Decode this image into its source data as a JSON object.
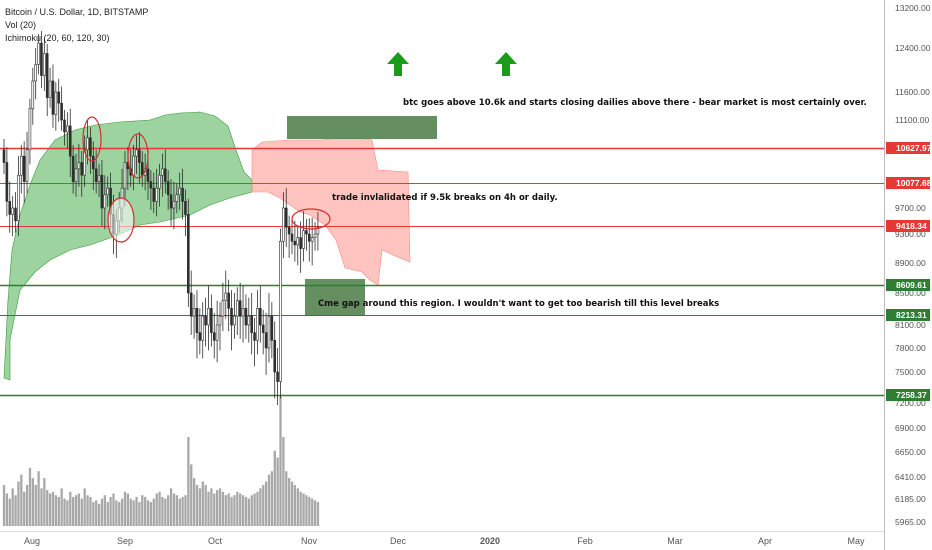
{
  "header": {
    "symbol": "Bitcoin / U.S. Dollar, 1D, BITSTAMP",
    "volume": "Vol (20)",
    "ichimoku": "Ichimoku (20, 60, 120, 30)"
  },
  "colors": {
    "up": "#2e2e2e",
    "down": "#2e2e2e",
    "volume": "#a8a8a8",
    "cloud_bull": "#4caf50",
    "cloud_bear": "#ff8a80",
    "red_line": "#e53935",
    "green_line": "#2e7d32",
    "arrow": "#1a9c1a",
    "box": "#4a7a45",
    "axis_text": "#555555"
  },
  "chart_data": {
    "type": "candlestick",
    "x_axis_labels": [
      "Aug",
      "Sep",
      "Oct",
      "Nov",
      "Dec",
      "2020",
      "Feb",
      "Mar",
      "Apr",
      "May"
    ],
    "y_axis_ticks": [
      13200,
      12400,
      11600,
      11100,
      9700,
      9300,
      8900,
      8500,
      8100,
      7800,
      7500,
      7200,
      6900,
      6650,
      6410,
      6185,
      5965
    ],
    "y_axis_tick_labels": [
      "13200.00",
      "12400.00",
      "11600.00",
      "11100.00",
      "9700.00",
      "9300.00",
      "8900.00",
      "8500.00",
      "8100.00",
      "7800.00",
      "7500.00",
      "7200.00",
      "6900.00",
      "6650.00",
      "6410.00",
      "6185.00",
      "5965.00"
    ],
    "price_range": [
      7150,
      13200
    ],
    "horizontal_levels": [
      {
        "price": 10627.97,
        "label": "10627.97",
        "color": "red"
      },
      {
        "price": 10077.68,
        "label": "10077.68",
        "color": "red"
      },
      {
        "price": 9418.34,
        "label": "9418.34",
        "color": "red"
      },
      {
        "price": 8609.61,
        "label": "8609.61",
        "color": "green"
      },
      {
        "price": 8213.31,
        "label": "8213.31",
        "color": "green"
      },
      {
        "price": 7258.37,
        "label": "7258.37",
        "color": "green"
      }
    ],
    "annotations": [
      "btc goes above 10.6k and starts closing dailies above there - bear market is most certainly over.",
      "trade invlalidated if 9.5k breaks on 4h or daily.",
      "Cme gap around this region. I wouldn't want to get too bearish till this level breaks"
    ],
    "closes": [
      10400,
      9800,
      9600,
      9700,
      9500,
      10200,
      10500,
      10100,
      10600,
      11300,
      11800,
      12100,
      12500,
      11900,
      12300,
      11500,
      11800,
      11200,
      11600,
      11400,
      11100,
      10900,
      11000,
      10500,
      10100,
      10300,
      10400,
      10200,
      10600,
      10800,
      10500,
      10300,
      10100,
      10200,
      9700,
      9900,
      10000,
      9600,
      9300,
      9500,
      9700,
      10000,
      10400,
      10300,
      10200,
      10500,
      10600,
      10400,
      10200,
      10300,
      10100,
      10000,
      9800,
      10000,
      10200,
      10300,
      10100,
      9900,
      9700,
      9800,
      9900,
      10000,
      9800,
      9600,
      8500,
      8200,
      8300,
      8000,
      7900,
      8200,
      8100,
      8300,
      8000,
      7900,
      8100,
      8200,
      8400,
      8500,
      8300,
      8100,
      8200,
      8400,
      8200,
      8300,
      8100,
      8200,
      8000,
      7900,
      8300,
      8100,
      8000,
      7800,
      8200,
      7900,
      7500,
      7400,
      9200,
      9700,
      9400,
      9300,
      9200,
      9150,
      9250,
      9100,
      9350,
      9300,
      9200,
      9250,
      9300,
      9400
    ],
    "volume": [
      120,
      95,
      80,
      110,
      90,
      130,
      150,
      100,
      120,
      170,
      140,
      120,
      160,
      110,
      140,
      105,
      95,
      100,
      90,
      85,
      110,
      80,
      75,
      100,
      85,
      90,
      95,
      80,
      110,
      90,
      85,
      70,
      75,
      65,
      80,
      90,
      70,
      85,
      95,
      75,
      70,
      80,
      100,
      95,
      80,
      75,
      85,
      70,
      90,
      85,
      75,
      70,
      80,
      95,
      100,
      85,
      80,
      90,
      110,
      95,
      90,
      80,
      85,
      90,
      260,
      180,
      140,
      120,
      110,
      130,
      120,
      100,
      110,
      95,
      105,
      110,
      100,
      90,
      95,
      85,
      90,
      100,
      95,
      90,
      85,
      80,
      90,
      95,
      100,
      110,
      120,
      130,
      150,
      160,
      220,
      200,
      380,
      260,
      160,
      140,
      130,
      120,
      110,
      100,
      95,
      90,
      85,
      80,
      75,
      70
    ]
  }
}
